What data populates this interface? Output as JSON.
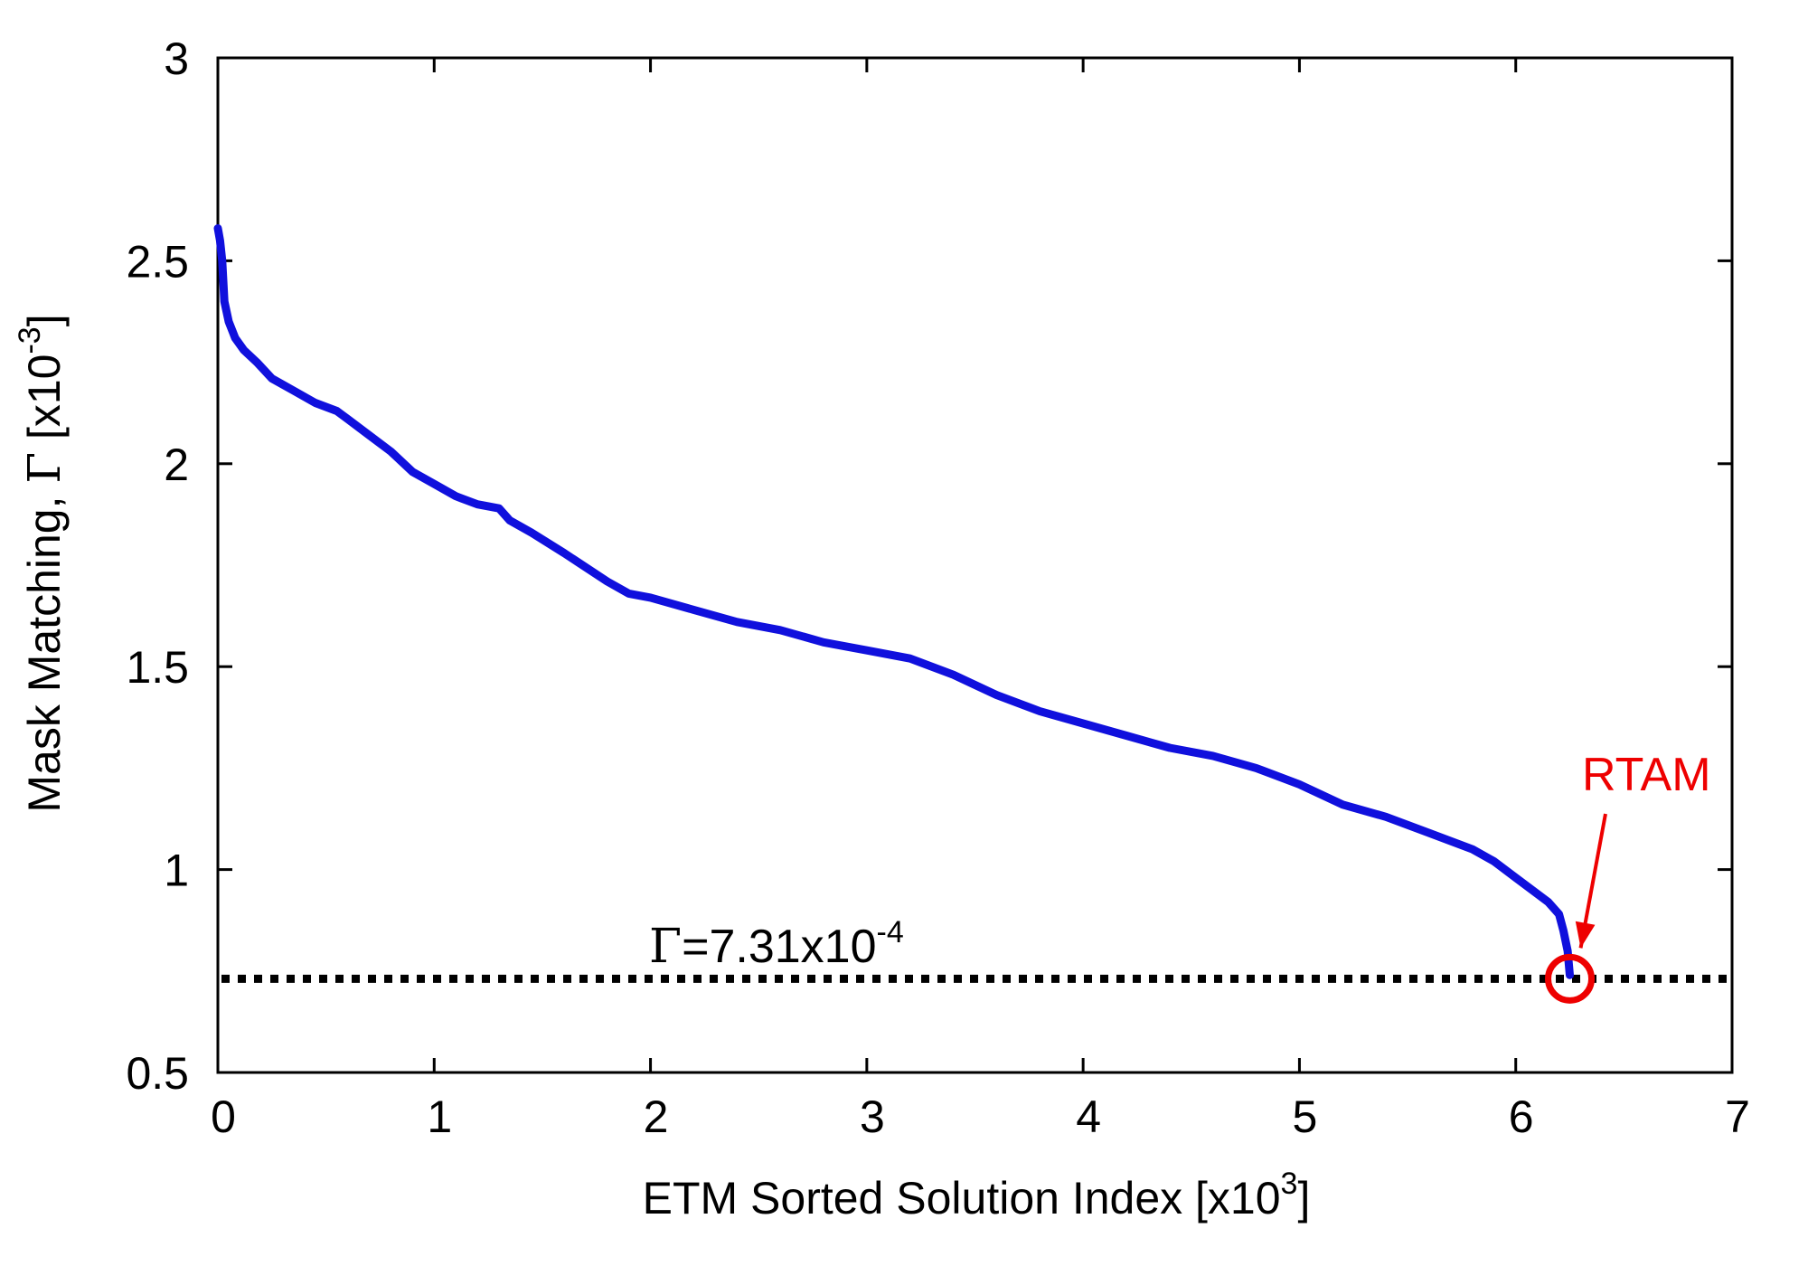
{
  "chart_data": {
    "type": "line",
    "title": "",
    "xlabel": {
      "base": "ETM Sorted Solution Index [x10",
      "sup": "3",
      "tail": "]"
    },
    "ylabel": {
      "base": "Mask Matching, ",
      "greek": "Γ",
      "mid": " [x10",
      "sup": "-3",
      "tail": "]"
    },
    "xlim": [
      0,
      7
    ],
    "ylim": [
      0.5,
      3
    ],
    "xticks": [
      0,
      1,
      2,
      3,
      4,
      5,
      6,
      7
    ],
    "xtick_labels": [
      "0",
      "1",
      "2",
      "3",
      "4",
      "5",
      "6",
      "7"
    ],
    "yticks": [
      0.5,
      1,
      1.5,
      2,
      2.5,
      3
    ],
    "ytick_labels": [
      "0.5",
      "1",
      "1.5",
      "2",
      "2.5",
      "3"
    ],
    "grid": false,
    "series": [
      {
        "color": "#1010dd",
        "x": [
          0,
          0.01,
          0.02,
          0.03,
          0.05,
          0.08,
          0.12,
          0.18,
          0.25,
          0.35,
          0.45,
          0.55,
          0.6,
          0.7,
          0.8,
          0.9,
          1.0,
          1.1,
          1.2,
          1.3,
          1.35,
          1.45,
          1.6,
          1.8,
          1.9,
          2.0,
          2.2,
          2.4,
          2.6,
          2.8,
          3.0,
          3.2,
          3.4,
          3.6,
          3.8,
          4.0,
          4.2,
          4.4,
          4.6,
          4.8,
          5.0,
          5.2,
          5.4,
          5.6,
          5.8,
          5.9,
          6.0,
          6.1,
          6.15,
          6.2,
          6.22,
          6.24,
          6.25
        ],
        "y": [
          2.58,
          2.55,
          2.5,
          2.4,
          2.35,
          2.31,
          2.28,
          2.25,
          2.21,
          2.18,
          2.15,
          2.13,
          2.11,
          2.07,
          2.03,
          1.98,
          1.95,
          1.92,
          1.9,
          1.89,
          1.86,
          1.83,
          1.78,
          1.71,
          1.68,
          1.67,
          1.64,
          1.61,
          1.59,
          1.56,
          1.54,
          1.52,
          1.48,
          1.43,
          1.39,
          1.36,
          1.33,
          1.3,
          1.28,
          1.25,
          1.21,
          1.16,
          1.13,
          1.09,
          1.05,
          1.02,
          0.98,
          0.94,
          0.92,
          0.89,
          0.85,
          0.8,
          0.74
        ]
      }
    ],
    "annotations": {
      "threshold": {
        "y": 0.731,
        "label_greek": "Γ",
        "label_base": "=7.31x10",
        "label_sup": "-4",
        "color": "#000000"
      },
      "rtam": {
        "label": "RTAM",
        "x": 6.25,
        "y": 0.731,
        "color": "#ee0000"
      }
    }
  }
}
